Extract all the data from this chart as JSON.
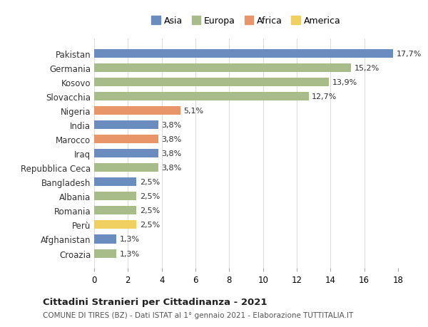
{
  "categories": [
    "Pakistan",
    "Germania",
    "Kosovo",
    "Slovacchia",
    "Nigeria",
    "India",
    "Marocco",
    "Iraq",
    "Repubblica Ceca",
    "Bangladesh",
    "Albania",
    "Romania",
    "Perù",
    "Afghanistan",
    "Croazia"
  ],
  "values": [
    17.7,
    15.2,
    13.9,
    12.7,
    5.1,
    3.8,
    3.8,
    3.8,
    3.8,
    2.5,
    2.5,
    2.5,
    2.5,
    1.3,
    1.3
  ],
  "continents": [
    "Asia",
    "Europa",
    "Europa",
    "Europa",
    "Africa",
    "Asia",
    "Africa",
    "Asia",
    "Europa",
    "Asia",
    "Europa",
    "Europa",
    "America",
    "Asia",
    "Europa"
  ],
  "labels": [
    "17,7%",
    "15,2%",
    "13,9%",
    "12,7%",
    "5,1%",
    "3,8%",
    "3,8%",
    "3,8%",
    "3,8%",
    "2,5%",
    "2,5%",
    "2,5%",
    "2,5%",
    "1,3%",
    "1,3%"
  ],
  "continent_colors": {
    "Asia": "#6b8cbf",
    "Europa": "#a8bc8a",
    "Africa": "#e8956a",
    "America": "#f0d060"
  },
  "title": "Cittadini Stranieri per Cittadinanza - 2021",
  "subtitle": "COMUNE DI TIRES (BZ) - Dati ISTAT al 1° gennaio 2021 - Elaborazione TUTTITALIA.IT",
  "xlim": [
    0,
    18
  ],
  "xticks": [
    0,
    2,
    4,
    6,
    8,
    10,
    12,
    14,
    16,
    18
  ],
  "bg_color": "#ffffff",
  "grid_color": "#dddddd",
  "legend_order": [
    "Asia",
    "Europa",
    "Africa",
    "America"
  ]
}
